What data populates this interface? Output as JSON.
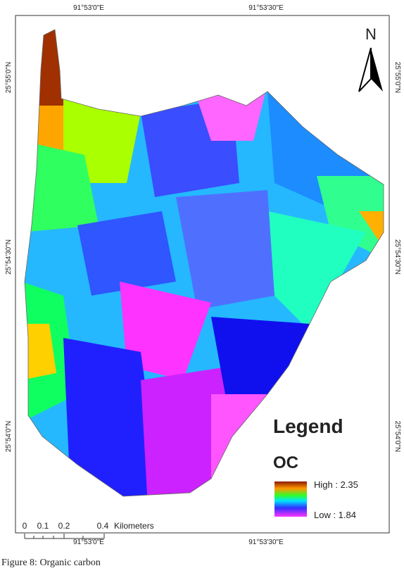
{
  "map": {
    "top_labels": [
      "91°53'0\"E",
      "91°53'30\"E"
    ],
    "bottom_labels": [
      "91°53'0\"E",
      "91°53'30\"E"
    ],
    "left_labels": [
      "25°55'0\"N",
      "25°54'30\"N",
      "25°54'0\"N"
    ],
    "right_labels": [
      "25°55'0\"N",
      "25°54'30\"N",
      "25°54'0\"N"
    ],
    "north": "N",
    "legend": {
      "title": "Legend",
      "variable": "OC",
      "high": "High : 2.35",
      "low": "Low : 1.84"
    },
    "scale": {
      "ticks": [
        "0",
        "0.1",
        "0.2",
        "0.4"
      ],
      "unit": "Kilometers"
    }
  },
  "caption": "Figure 8: Organic carbon"
}
